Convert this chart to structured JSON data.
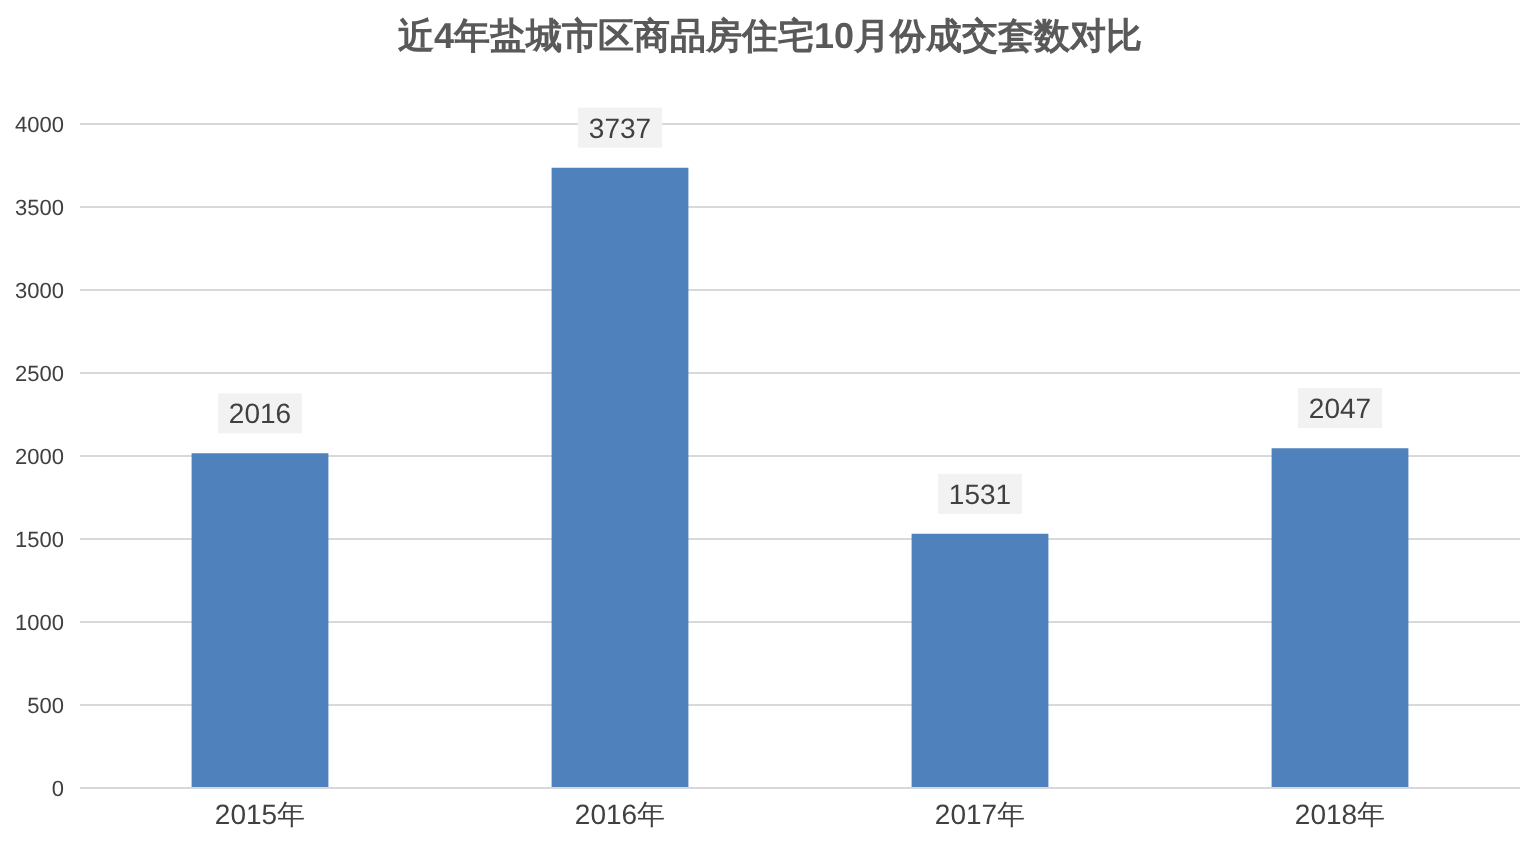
{
  "chart_data": {
    "type": "bar",
    "title": "近4年盐城市区商品房住宅10月份成交套数对比",
    "categories": [
      "2015年",
      "2016年",
      "2017年",
      "2018年"
    ],
    "values": [
      2016,
      3737,
      1531,
      2047
    ],
    "color": "#4f81bd",
    "ylim": [
      0,
      4000
    ],
    "yticks": [
      0,
      500,
      1000,
      1500,
      2000,
      2500,
      3000,
      3500,
      4000
    ],
    "grid": "y",
    "data_labels": true
  }
}
